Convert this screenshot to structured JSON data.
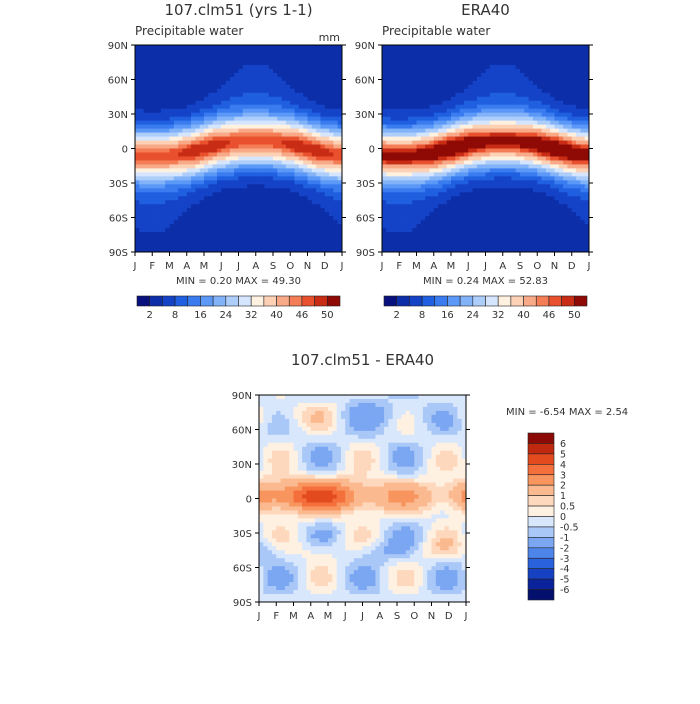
{
  "chart_data": [
    {
      "type": "heatmap",
      "title": "107.clm51 (yrs 1-1)",
      "subtitle": "Precipitable water",
      "units": "mm",
      "x_ticks": [
        "J",
        "F",
        "M",
        "A",
        "M",
        "J",
        "J",
        "A",
        "S",
        "O",
        "N",
        "D",
        "J"
      ],
      "y_ticks": [
        "90N",
        "60N",
        "30N",
        "0",
        "30S",
        "60S",
        "90S"
      ],
      "stats_text": "MIN =    0.20  MAX =   49.30",
      "min": 0.2,
      "max": 49.3,
      "colorbar_labels": [
        "2",
        "8",
        "16",
        "24",
        "32",
        "40",
        "46",
        "50"
      ],
      "colorbar_levels": [
        2,
        4,
        8,
        12,
        16,
        20,
        24,
        28,
        32,
        36,
        40,
        44,
        46,
        48,
        50
      ],
      "colors": [
        "#08107d",
        "#0c2ea8",
        "#1443c8",
        "#1f5fe0",
        "#3a7cf0",
        "#5b98f7",
        "#82b3f9",
        "#adcdfb",
        "#d4e5fd",
        "#fff1e0",
        "#fcd1b5",
        "#f8a987",
        "#f47d56",
        "#e8502e",
        "#c82c14",
        "#8f0a05"
      ]
    },
    {
      "type": "heatmap",
      "title": "ERA40",
      "subtitle": "Precipitable water",
      "x_ticks": [
        "J",
        "F",
        "M",
        "A",
        "M",
        "J",
        "J",
        "A",
        "S",
        "O",
        "N",
        "D",
        "J"
      ],
      "y_ticks": [
        "90N",
        "60N",
        "30N",
        "0",
        "30S",
        "60S",
        "90S"
      ],
      "stats_text": "MIN =    0.24  MAX =   52.83",
      "min": 0.24,
      "max": 52.83,
      "colorbar_labels": [
        "2",
        "8",
        "16",
        "24",
        "32",
        "40",
        "46",
        "50"
      ],
      "colorbar_levels": [
        2,
        4,
        8,
        12,
        16,
        20,
        24,
        28,
        32,
        36,
        40,
        44,
        46,
        48,
        50
      ],
      "colors": [
        "#08107d",
        "#0c2ea8",
        "#1443c8",
        "#1f5fe0",
        "#3a7cf0",
        "#5b98f7",
        "#82b3f9",
        "#adcdfb",
        "#d4e5fd",
        "#fff1e0",
        "#fcd1b5",
        "#f8a987",
        "#f47d56",
        "#e8502e",
        "#c82c14",
        "#8f0a05"
      ]
    },
    {
      "type": "heatmap",
      "title": "107.clm51 - ERA40",
      "x_ticks": [
        "J",
        "F",
        "M",
        "A",
        "M",
        "J",
        "J",
        "A",
        "S",
        "O",
        "N",
        "D",
        "J"
      ],
      "y_ticks": [
        "90N",
        "60N",
        "30N",
        "0",
        "30S",
        "60S",
        "90S"
      ],
      "stats_text": "MIN =   -6.54  MAX =    2.54",
      "min": -6.54,
      "max": 2.54,
      "colorbar_labels": [
        "6",
        "5",
        "4",
        "3",
        "2",
        "1",
        "0.5",
        "0",
        "-0.5",
        "-1",
        "-2",
        "-3",
        "-4",
        "-5",
        "-6"
      ],
      "colors": [
        "#8b0a05",
        "#c0280f",
        "#e34a1e",
        "#f46f3b",
        "#f8955f",
        "#fbb98f",
        "#fdd8bd",
        "#fff1e2",
        "#d8e7fb",
        "#a9c8f7",
        "#7aa6f2",
        "#4d85ea",
        "#2a62de",
        "#1641c2",
        "#0a239a",
        "#04106e"
      ]
    }
  ]
}
